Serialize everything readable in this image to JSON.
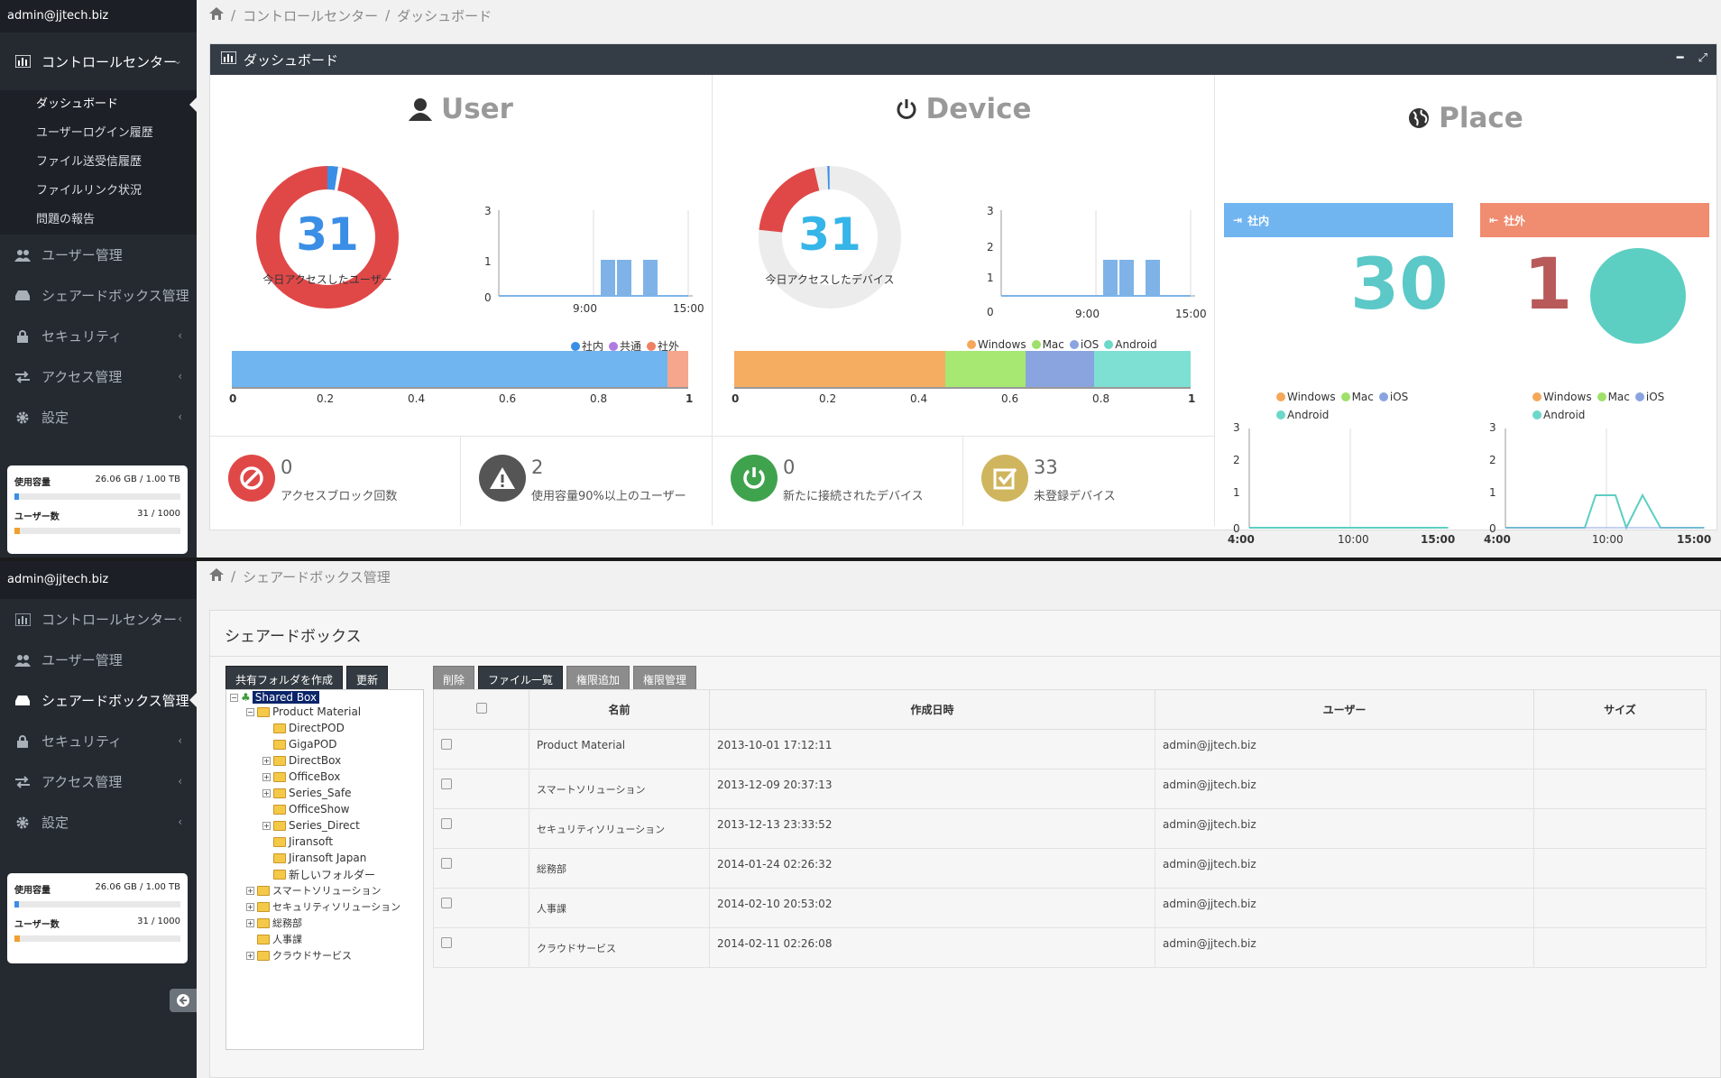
{
  "user_email": "admin@jjtech.biz",
  "nav": {
    "control_center": "コントロールセンター",
    "dashboard": "ダッシュボード",
    "login_history": "ユーザーログイン履歴",
    "file_history": "ファイル送受信履歴",
    "file_link": "ファイルリンク状況",
    "report": "問題の報告",
    "users": "ユーザー管理",
    "sharedbox": "シェアードボックス管理",
    "security": "セキュリティ",
    "access": "アクセス管理",
    "settings": "設定"
  },
  "quota": {
    "usage_label": "使用容量",
    "usage_value": "26.06 GB / 1.00 TB",
    "usage_pct": 2.6,
    "users_label": "ユーザー数",
    "users_value": "31 / 1000",
    "users_pct": 3.1
  },
  "screen1": {
    "breadcrumb": [
      "コントロールセンター",
      "ダッシュボード"
    ],
    "panel_title": "ダッシュボード",
    "user": {
      "title": "User",
      "count": "31",
      "caption": "今日アクセスしたユーザー"
    },
    "device": {
      "title": "Device",
      "count": "31",
      "caption": "今日アクセスしたデバイス"
    },
    "place": {
      "title": "Place",
      "inside_label": "社内",
      "outside_label": "社外",
      "inside_count": "30",
      "outside_count": "1"
    },
    "legend_user": [
      "社内",
      "共通",
      "社外"
    ],
    "legend_device": [
      "Windows",
      "Mac",
      "iOS",
      "Android"
    ],
    "axis": {
      "y3": "3",
      "y2": "2",
      "y1": "1",
      "y0": "0",
      "x900": "9:00",
      "x1500": "15:00",
      "x400": "4:00",
      "x1000": "10:00",
      "b0": "0",
      "b02": "0.2",
      "b04": "0.4",
      "b06": "0.6",
      "b08": "0.8",
      "b1": "1"
    },
    "stats": [
      {
        "value": "0",
        "label": "アクセスブロック回数"
      },
      {
        "value": "2",
        "label": "使用容量90%以上のユーザー"
      },
      {
        "value": "0",
        "label": "新たに接続されたデバイス"
      },
      {
        "value": "33",
        "label": "未登録デバイス"
      }
    ],
    "user_bar": [
      0.955,
      0.0,
      0.045
    ],
    "device_bar": [
      0.463,
      0.175,
      0.15,
      0.212
    ]
  },
  "screen2": {
    "breadcrumb": "シェアードボックス管理",
    "panel_title": "シェアードボックス",
    "buttons": {
      "create": "共有フォルダを作成",
      "refresh": "更新",
      "delete": "削除",
      "files": "ファイル一覧",
      "add_perm": "権限追加",
      "manage_perm": "権限管理"
    },
    "tree": {
      "root": "Shared Box",
      "product": "Product Material",
      "children": [
        "DirectPOD",
        "GigaPOD",
        "DirectBox",
        "OfficeBox",
        "Series_Safe",
        "OfficeShow",
        "Series_Direct",
        "Jiransoft",
        "Jiransoft Japan",
        "新しいフォルダー"
      ],
      "others": [
        "スマートソリューション",
        "セキュリティソリューション",
        "総務部",
        "人事課",
        "クラウドサービス"
      ]
    },
    "table": {
      "headers": [
        "名前",
        "作成日時",
        "ユーザー",
        "サイズ"
      ],
      "rows": [
        {
          "name": "Product Material",
          "date": "2013-10-01 17:12:11",
          "user": "admin@jjtech.biz"
        },
        {
          "name": "スマートソリューション",
          "date": "2013-12-09 20:37:13",
          "user": "admin@jjtech.biz"
        },
        {
          "name": "セキュリティソリューション",
          "date": "2013-12-13 23:33:52",
          "user": "admin@jjtech.biz"
        },
        {
          "name": "総務部",
          "date": "2014-01-24 02:26:32",
          "user": "admin@jjtech.biz"
        },
        {
          "name": "人事課",
          "date": "2014-02-10 20:53:02",
          "user": "admin@jjtech.biz"
        },
        {
          "name": "クラウドサービス",
          "date": "2014-02-11 02:26:08",
          "user": "admin@jjtech.biz"
        }
      ]
    }
  }
}
